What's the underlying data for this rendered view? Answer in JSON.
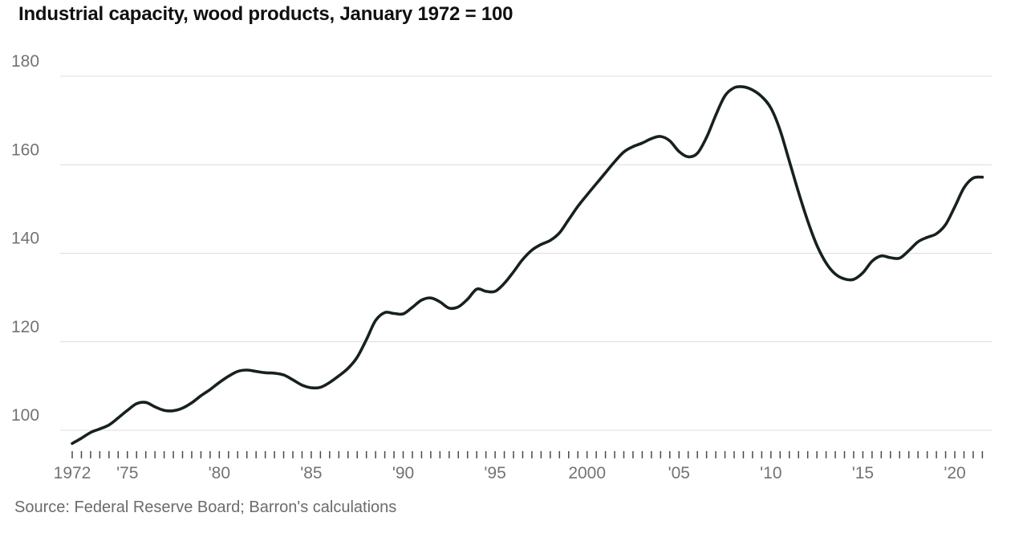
{
  "title": "Industrial capacity, wood products, January 1972 = 100",
  "source": "Source: Federal Reserve Board; Barron's calculations",
  "colors": {
    "line": "#17211f",
    "grid": "#dcdcdc",
    "axis_text": "#737373",
    "tick": "#4a4a4a",
    "title_text": "#101010",
    "source_text": "#6b6b6b"
  },
  "chart_data": {
    "type": "line",
    "title": "Industrial capacity, wood products, January 1972 = 100",
    "xlabel": "",
    "ylabel": "",
    "xlim": [
      1972,
      2021.5
    ],
    "ylim": [
      100,
      180
    ],
    "grid": "horizontal",
    "legend": "none",
    "y_ticks": [
      100,
      120,
      140,
      160,
      180
    ],
    "x_tick_labels": [
      {
        "year": 1972,
        "label": "1972"
      },
      {
        "year": 1975,
        "label": "'75"
      },
      {
        "year": 1980,
        "label": "'80"
      },
      {
        "year": 1985,
        "label": "'85"
      },
      {
        "year": 1990,
        "label": "'90"
      },
      {
        "year": 1995,
        "label": "'95"
      },
      {
        "year": 2000,
        "label": "2000"
      },
      {
        "year": 2005,
        "label": "'05"
      },
      {
        "year": 2010,
        "label": "'10"
      },
      {
        "year": 2015,
        "label": "'15"
      },
      {
        "year": 2020,
        "label": "'20"
      }
    ],
    "minor_tick_step": 0.5,
    "series": [
      {
        "name": "Industrial capacity, wood products (Jan 1972 = 100)",
        "x": [
          1972,
          1972.5,
          1973,
          1973.5,
          1974,
          1974.5,
          1975,
          1975.5,
          1976,
          1976.5,
          1977,
          1977.5,
          1978,
          1978.5,
          1979,
          1979.5,
          1980,
          1980.5,
          1981,
          1981.5,
          1982,
          1982.5,
          1983,
          1983.5,
          1984,
          1984.5,
          1985,
          1985.5,
          1986,
          1986.5,
          1987,
          1987.5,
          1988,
          1988.5,
          1989,
          1989.5,
          1990,
          1990.5,
          1991,
          1991.5,
          1992,
          1992.5,
          1993,
          1993.5,
          1994,
          1994.5,
          1995,
          1995.5,
          1996,
          1996.5,
          1997,
          1997.5,
          1998,
          1998.5,
          1999,
          1999.5,
          2000,
          2000.5,
          2001,
          2001.5,
          2002,
          2002.5,
          2003,
          2003.5,
          2004,
          2004.5,
          2005,
          2005.5,
          2006,
          2006.5,
          2007,
          2007.5,
          2008,
          2008.5,
          2009,
          2009.5,
          2010,
          2010.5,
          2011,
          2011.5,
          2012,
          2012.5,
          2013,
          2013.5,
          2014,
          2014.5,
          2015,
          2015.5,
          2016,
          2016.5,
          2017,
          2017.5,
          2018,
          2018.5,
          2019,
          2019.5,
          2020,
          2020.5,
          2021,
          2021.5
        ],
        "y": [
          97.0,
          98.2,
          99.5,
          100.3,
          101.2,
          102.8,
          104.5,
          106.0,
          106.3,
          105.3,
          104.5,
          104.4,
          105.0,
          106.2,
          107.8,
          109.2,
          110.8,
          112.2,
          113.3,
          113.6,
          113.3,
          113.0,
          112.9,
          112.5,
          111.4,
          110.2,
          109.6,
          109.7,
          110.8,
          112.3,
          114.0,
          116.5,
          120.5,
          124.8,
          126.6,
          126.4,
          126.3,
          127.8,
          129.4,
          129.9,
          129.0,
          127.6,
          127.9,
          129.6,
          131.9,
          131.4,
          131.4,
          133.2,
          135.8,
          138.6,
          140.7,
          142.0,
          142.9,
          144.6,
          147.6,
          150.6,
          153.2,
          155.7,
          158.2,
          160.7,
          162.9,
          164.1,
          164.9,
          165.9,
          166.4,
          165.4,
          163.0,
          161.8,
          162.6,
          166.2,
          171.2,
          175.6,
          177.4,
          177.6,
          176.9,
          175.4,
          172.8,
          167.8,
          160.8,
          153.8,
          147.3,
          141.8,
          137.8,
          135.3,
          134.2,
          134.1,
          135.6,
          138.2,
          139.4,
          139.0,
          138.9,
          140.6,
          142.6,
          143.6,
          144.4,
          146.5,
          150.5,
          154.8,
          157.0,
          157.2
        ]
      }
    ]
  }
}
